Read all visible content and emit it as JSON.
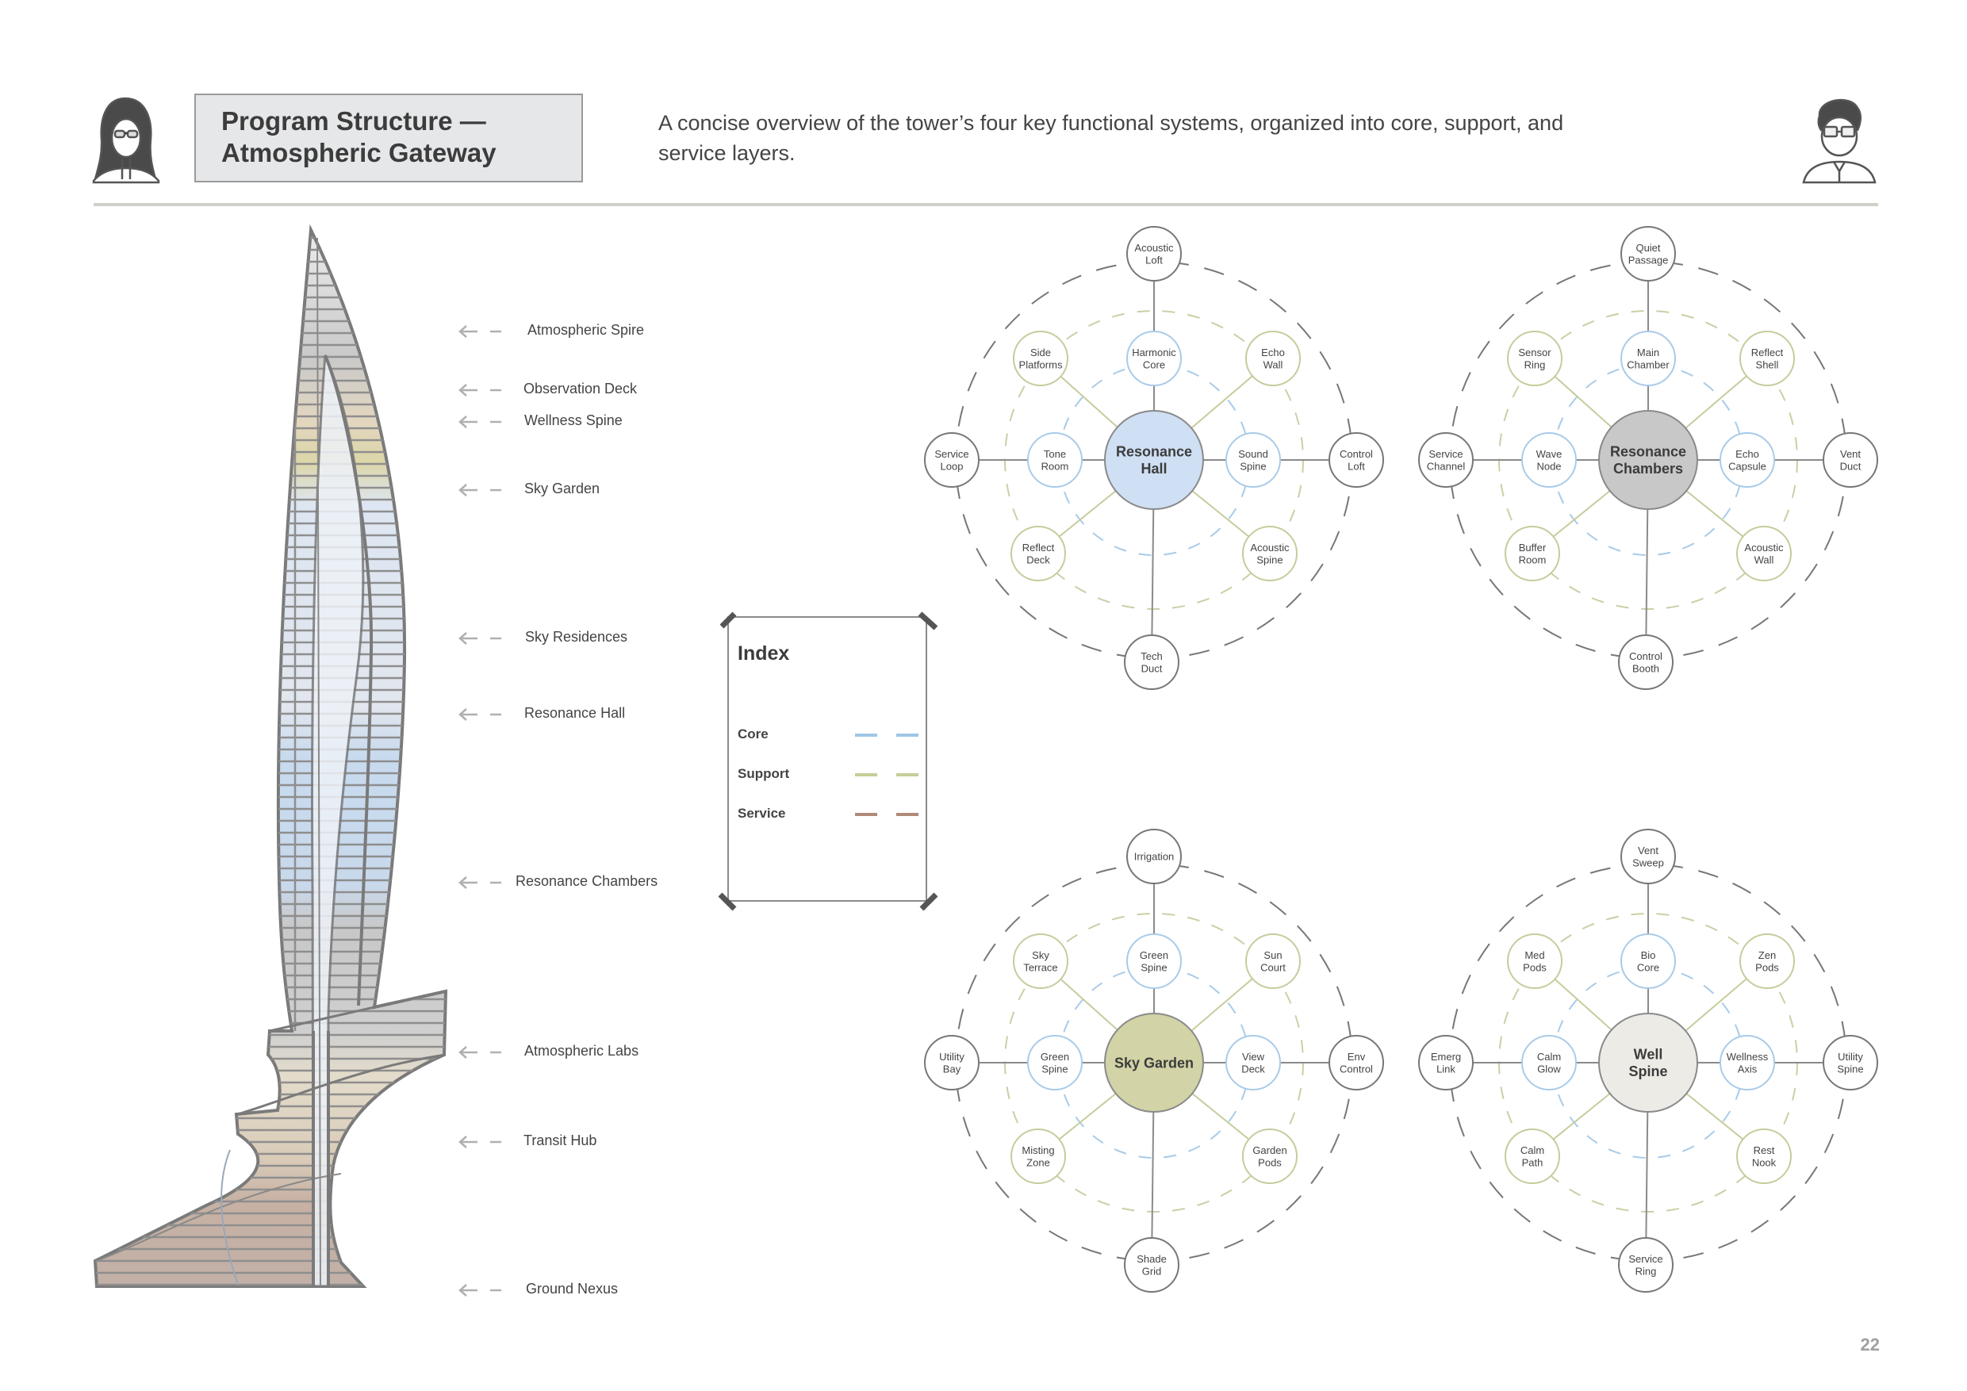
{
  "header": {
    "title_line1": "Program Structure —",
    "title_line2": "Atmospheric Gateway",
    "subtitle": "A concise overview of the tower’s four key functional systems, organized into core, support, and service layers."
  },
  "page_number": "22",
  "tower_labels": [
    {
      "label": "Atmospheric Spire"
    },
    {
      "label": "Observation Deck"
    },
    {
      "label": "Wellness Spine"
    },
    {
      "label": "Sky Garden"
    },
    {
      "label": "Sky Residences"
    },
    {
      "label": "Resonance Hall"
    },
    {
      "label": "Resonance Chambers"
    },
    {
      "label": "Atmospheric Labs"
    },
    {
      "label": "Transit Hub"
    },
    {
      "label": "Ground Nexus"
    }
  ],
  "legend": {
    "title": "Index",
    "items": [
      {
        "label": "Core",
        "color": "#9fc6e6"
      },
      {
        "label": "Support",
        "color": "#c4cf98"
      },
      {
        "label": "Service",
        "color": "#b08a78"
      }
    ]
  },
  "diagrams": [
    {
      "center": [
        "Resonance",
        "Hall"
      ],
      "center_color": "#cfdff4",
      "outer": {
        "top": [
          "Acoustic",
          "Loft"
        ],
        "right": [
          "Control",
          "Loft"
        ],
        "bottom": [
          "Tech",
          "Duct"
        ],
        "left": [
          "Service",
          "Loop"
        ]
      },
      "mid": {
        "tl": [
          "Side",
          "Platforms"
        ],
        "tr": [
          "Echo",
          "Wall"
        ],
        "br": [
          "Acoustic",
          "Spine"
        ],
        "bl": [
          "Reflect",
          "Deck"
        ]
      },
      "inner": {
        "top": [
          "Harmonic",
          "Core"
        ],
        "right": [
          "Sound",
          "Spine"
        ],
        "left": [
          "Tone",
          "Room"
        ]
      }
    },
    {
      "center": [
        "Resonance",
        "Chambers"
      ],
      "center_color": "#c8c8c8",
      "outer": {
        "top": [
          "Quiet",
          "Passage"
        ],
        "right": [
          "Vent",
          "Duct"
        ],
        "bottom": [
          "Control",
          "Booth"
        ],
        "left": [
          "Service",
          "Channel"
        ]
      },
      "mid": {
        "tl": [
          "Sensor",
          "Ring"
        ],
        "tr": [
          "Reflect",
          "Shell"
        ],
        "br": [
          "Acoustic",
          "Wall"
        ],
        "bl": [
          "Buffer",
          "Room"
        ]
      },
      "inner": {
        "top": [
          "Main",
          "Chamber"
        ],
        "right": [
          "Echo",
          "Capsule"
        ],
        "left": [
          "Wave",
          "Node"
        ]
      }
    },
    {
      "center": [
        "Sky Garden"
      ],
      "center_color": "#d2d3a6",
      "outer": {
        "top": [
          "Irrigation"
        ],
        "right": [
          "Env",
          "Control"
        ],
        "bottom": [
          "Shade",
          "Grid"
        ],
        "left": [
          "Utility",
          "Bay"
        ]
      },
      "mid": {
        "tl": [
          "Sky",
          "Terrace"
        ],
        "tr": [
          "Sun",
          "Court"
        ],
        "br": [
          "Garden",
          "Pods"
        ],
        "bl": [
          "Misting",
          "Zone"
        ]
      },
      "inner": {
        "top": [
          "Green",
          "Spine"
        ],
        "right": [
          "View",
          "Deck"
        ],
        "left": [
          "Green",
          "Spine"
        ]
      }
    },
    {
      "center": [
        "Well",
        "Spine"
      ],
      "center_color": "#ecebe6",
      "outer": {
        "top": [
          "Vent",
          "Sweep"
        ],
        "right": [
          "Utility",
          "Spine"
        ],
        "bottom": [
          "Service",
          "Ring"
        ],
        "left": [
          "Emerg",
          "Link"
        ]
      },
      "mid": {
        "tl": [
          "Med",
          "Pods"
        ],
        "tr": [
          "Zen",
          "Pods"
        ],
        "br": [
          "Rest",
          "Nook"
        ],
        "bl": [
          "Calm",
          "Path"
        ]
      },
      "inner": {
        "top": [
          "Bio",
          "Core"
        ],
        "right": [
          "Wellness",
          "Axis"
        ],
        "left": [
          "Calm",
          "Glow"
        ]
      }
    }
  ]
}
